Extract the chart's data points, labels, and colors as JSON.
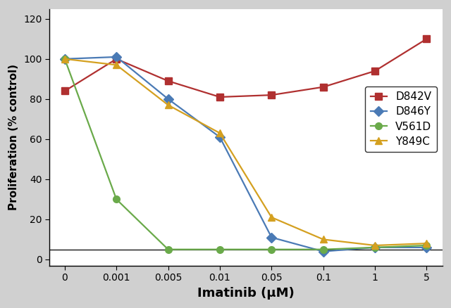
{
  "x_positions": [
    0,
    1,
    2,
    3,
    4,
    5,
    6,
    7
  ],
  "x_labels": [
    "0",
    "0.001",
    "0.005",
    "0.01",
    "0.05",
    "0.1",
    "1",
    "5"
  ],
  "D842V": [
    84,
    100,
    89,
    81,
    82,
    86,
    94,
    110
  ],
  "D846Y": [
    100,
    101,
    80,
    61,
    11,
    4,
    6,
    6
  ],
  "V561D": [
    100,
    30,
    5,
    5,
    5,
    5,
    6,
    7
  ],
  "Y849C": [
    100,
    97,
    77,
    63,
    21,
    10,
    7,
    8
  ],
  "D842V_color": "#b03030",
  "D846Y_color": "#4a7ab5",
  "V561D_color": "#6aaa4a",
  "Y849C_color": "#d4a020",
  "xlabel": "Imatinib (μM)",
  "ylabel": "Proliferation (% control)",
  "ylim": [
    -3,
    125
  ],
  "yticks": [
    0,
    20,
    40,
    60,
    80,
    100,
    120
  ],
  "background_color": "#ffffff",
  "outer_background": "#d0d0d0",
  "legend_labels": [
    "D842V",
    "D846Y",
    "V561D",
    "Y849C"
  ],
  "hline_y": 5
}
